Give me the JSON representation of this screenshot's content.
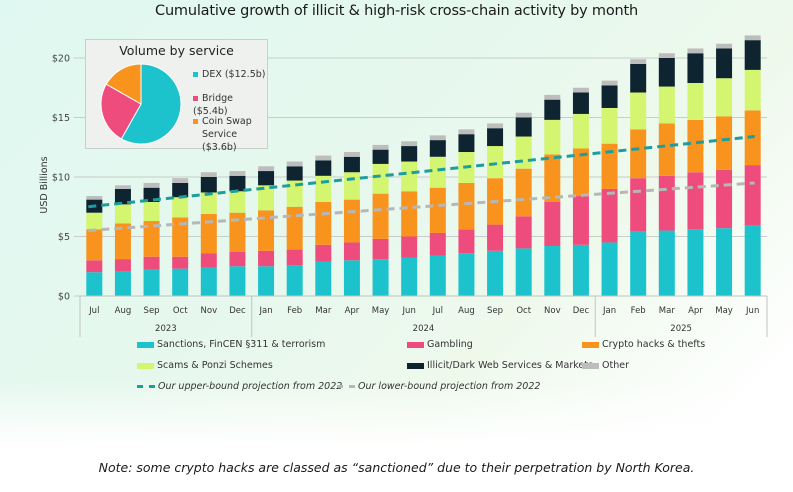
{
  "chart_data": {
    "type": "bar",
    "stacked": true,
    "title": "Cumulative growth of illicit & high-risk cross-chain activity by month",
    "xlabel": "",
    "ylabel": "USD Billions",
    "ylim": [
      0,
      22
    ],
    "yticks": [
      0,
      5,
      10,
      15,
      20
    ],
    "ytick_labels": [
      "$0",
      "$5",
      "$10",
      "$15",
      "$20"
    ],
    "grid": true,
    "categories": [
      "Jul",
      "Aug",
      "Sep",
      "Oct",
      "Nov",
      "Dec",
      "Jan",
      "Feb",
      "Mar",
      "Apr",
      "May",
      "Jun",
      "Jul",
      "Aug",
      "Sep",
      "Oct",
      "Nov",
      "Dec",
      "Jan",
      "Feb",
      "Mar",
      "Apr",
      "May",
      "Jun"
    ],
    "year_groups": [
      {
        "label": "2023",
        "count": 6
      },
      {
        "label": "2024",
        "count": 12
      },
      {
        "label": "2025",
        "count": 6
      }
    ],
    "series": [
      {
        "name": "Sanctions, FinCEN §311 & terrorism",
        "color": "#1cc3cc",
        "values": [
          2.0,
          2.1,
          2.2,
          2.3,
          2.4,
          2.5,
          2.5,
          2.6,
          2.9,
          3.0,
          3.1,
          3.2,
          3.4,
          3.6,
          3.8,
          4.0,
          4.2,
          4.3,
          4.5,
          5.4,
          5.5,
          5.6,
          5.7,
          5.9
        ]
      },
      {
        "name": "Gambling",
        "color": "#ef4c7e",
        "values": [
          1.0,
          1.0,
          1.1,
          1.0,
          1.2,
          1.2,
          1.3,
          1.3,
          1.4,
          1.5,
          1.7,
          1.8,
          1.9,
          2.0,
          2.2,
          2.7,
          3.7,
          4.1,
          4.5,
          4.5,
          4.6,
          4.8,
          4.9,
          5.1
        ]
      },
      {
        "name": "Crypto hacks & thefts",
        "color": "#f8931e",
        "values": [
          2.6,
          3.0,
          3.0,
          3.3,
          3.3,
          3.3,
          3.4,
          3.6,
          3.6,
          3.6,
          3.8,
          3.8,
          3.8,
          3.9,
          3.9,
          4.0,
          4.0,
          4.0,
          3.8,
          4.1,
          4.4,
          4.4,
          4.5,
          4.6
        ]
      },
      {
        "name": "Scams & Ponzi Schemes",
        "color": "#d4f56f",
        "values": [
          1.4,
          1.6,
          1.6,
          1.7,
          1.8,
          1.8,
          2.1,
          2.2,
          2.2,
          2.3,
          2.5,
          2.5,
          2.6,
          2.6,
          2.7,
          2.7,
          2.9,
          2.9,
          3.0,
          3.1,
          3.1,
          3.1,
          3.2,
          3.4
        ]
      },
      {
        "name": "Illicit/Dark Web Services & Markets",
        "color": "#0e2531",
        "values": [
          1.1,
          1.3,
          1.2,
          1.2,
          1.3,
          1.3,
          1.2,
          1.2,
          1.3,
          1.3,
          1.2,
          1.3,
          1.4,
          1.5,
          1.5,
          1.6,
          1.7,
          1.8,
          1.9,
          2.4,
          2.4,
          2.5,
          2.5,
          2.5
        ]
      },
      {
        "name": "Other",
        "color": "#bdbdbd",
        "values": [
          0.3,
          0.3,
          0.4,
          0.4,
          0.4,
          0.4,
          0.4,
          0.4,
          0.4,
          0.4,
          0.4,
          0.4,
          0.4,
          0.4,
          0.4,
          0.4,
          0.4,
          0.4,
          0.4,
          0.4,
          0.4,
          0.4,
          0.4,
          0.4
        ]
      }
    ],
    "projections": [
      {
        "name": "Our upper-bound projection from 2022",
        "color": "#1f9c9c",
        "start": 7.5,
        "end": 13.4
      },
      {
        "name": "Our lower-bound projection from 2022",
        "color": "#b7b7b7",
        "start": 5.5,
        "end": 9.5
      }
    ],
    "legend_position": "bottom",
    "inset": {
      "type": "pie",
      "title": "Volume by service",
      "slices": [
        {
          "label": "DEX ($12.5b)",
          "value": 12.5,
          "color": "#1cc3cc"
        },
        {
          "label": "Bridge ($5.4b)",
          "value": 5.4,
          "color": "#ef4c7e"
        },
        {
          "label": "Coin Swap Service ($3.6b)",
          "value": 3.6,
          "color": "#f8931e"
        }
      ],
      "legend_lines": [
        [
          "DEX ($12.5b)"
        ],
        [
          "Bridge ($5.4b)"
        ],
        [
          "Coin Swap",
          "Service ($3.6b)"
        ]
      ],
      "legend_position": "right"
    },
    "note": "Note: some crypto hacks are classed as “sanctioned” due to their perpetration by North Korea."
  }
}
